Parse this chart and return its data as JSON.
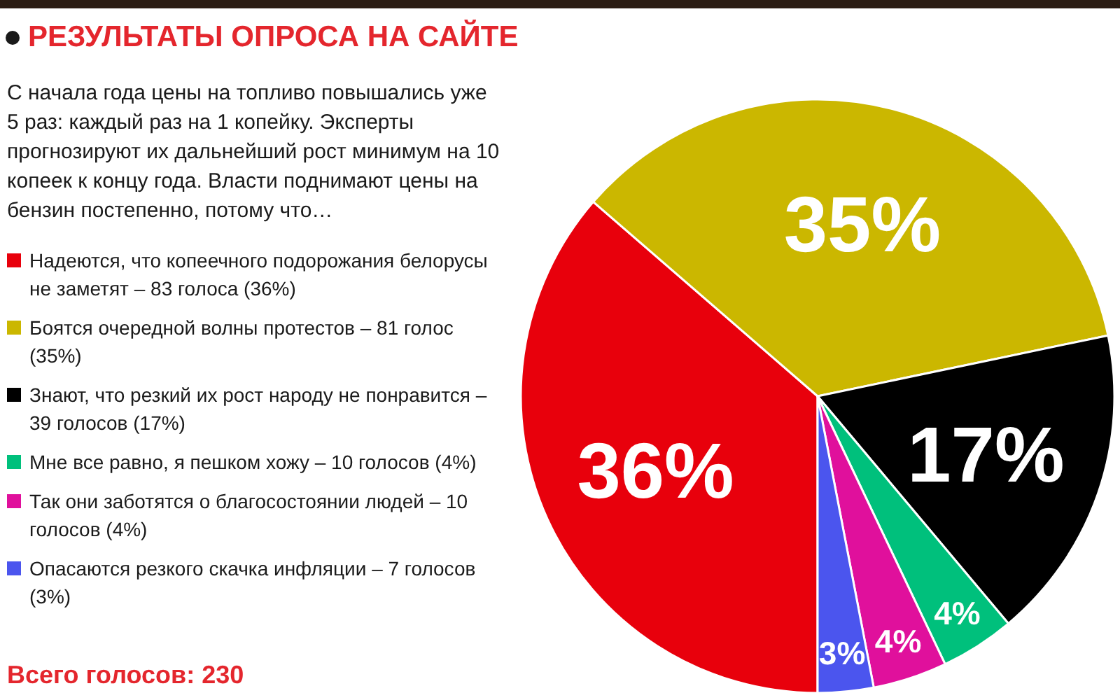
{
  "chart_data": {
    "type": "pie",
    "title": "РЕЗУЛЬТАТЫ ОПРОСА НА САЙТЕ",
    "subtitle": "С начала года цены на топливо повышались уже 5 раз: каждый раз на 1 копейку. Эксперты прогнозируют их дальнейший рост минимум на 10 копеек к концу года. Власти поднимают цены на бензин постепенно, потому что…",
    "categories": [
      "Надеются, что копеечного подорожания белорусы не заметят – 83 голоса (36%)",
      "Боятся очередной волны протестов – 81 голос (35%)",
      "Знают, что резкий их рост народу не понравится – 39 голосов (17%)",
      "Мне все равно, я пешком хожу – 10 голосов (4%)",
      "Так они заботятся о благосостоянии людей – 10 голосов (4%)",
      "Опасаются резкого скачка инфляции – 7 голосов (3%)"
    ],
    "values": [
      36,
      35,
      17,
      4,
      4,
      3
    ],
    "colors": [
      "#e8000c",
      "#cbb700",
      "#000000",
      "#00c07c",
      "#e0109c",
      "#4b55ee"
    ],
    "value_labels": [
      "36%",
      "35%",
      "17%",
      "4%",
      "4%",
      "3%"
    ],
    "legend": "left",
    "annotations": [
      "Всего голосов: 230"
    ]
  }
}
